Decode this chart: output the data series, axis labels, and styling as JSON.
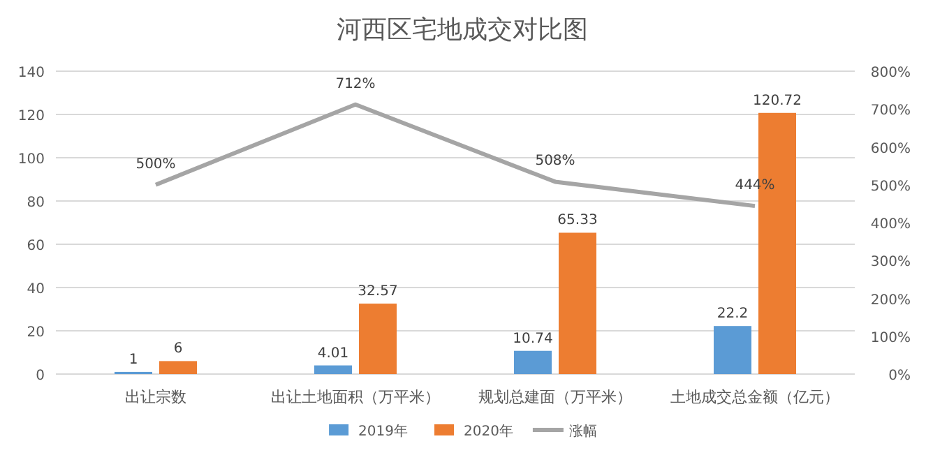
{
  "chart_data": {
    "type": "bar",
    "title": "河西区宅地成交对比图",
    "categories": [
      "出让宗数",
      "出让土地面积（万平米）",
      "规划总建面（万平米）",
      "土地成交总金额（亿元）"
    ],
    "series": [
      {
        "name": "2019年",
        "color": "#5b9bd5",
        "values": [
          1,
          4.01,
          10.74,
          22.2
        ],
        "value_labels": [
          "1",
          "4.01",
          "10.74",
          "22.2"
        ]
      },
      {
        "name": "2020年",
        "color": "#ed7d31",
        "values": [
          6,
          32.57,
          65.33,
          120.72
        ],
        "value_labels": [
          "6",
          "32.57",
          "65.33",
          "120.72"
        ]
      },
      {
        "name": "涨幅",
        "type": "line",
        "axis": "y2",
        "color": "#a5a5a5",
        "values": [
          500,
          712,
          508,
          444
        ],
        "value_labels": [
          "500%",
          "712%",
          "508%",
          "444%"
        ]
      }
    ],
    "ylim": [
      0,
      140
    ],
    "yticks": [
      0,
      20,
      40,
      60,
      80,
      100,
      120,
      140
    ],
    "y2lim": [
      0,
      800
    ],
    "y2ticks": [
      {
        "value": 0,
        "label": "0%"
      },
      {
        "value": 100,
        "label": "100%"
      },
      {
        "value": 200,
        "label": "200%"
      },
      {
        "value": 300,
        "label": "300%"
      },
      {
        "value": 400,
        "label": "400%"
      },
      {
        "value": 500,
        "label": "500%"
      },
      {
        "value": 600,
        "label": "600%"
      },
      {
        "value": 700,
        "label": "700%"
      },
      {
        "value": 800,
        "label": "800%"
      }
    ],
    "grid": "y",
    "legend": "bottom",
    "marker": "none"
  }
}
